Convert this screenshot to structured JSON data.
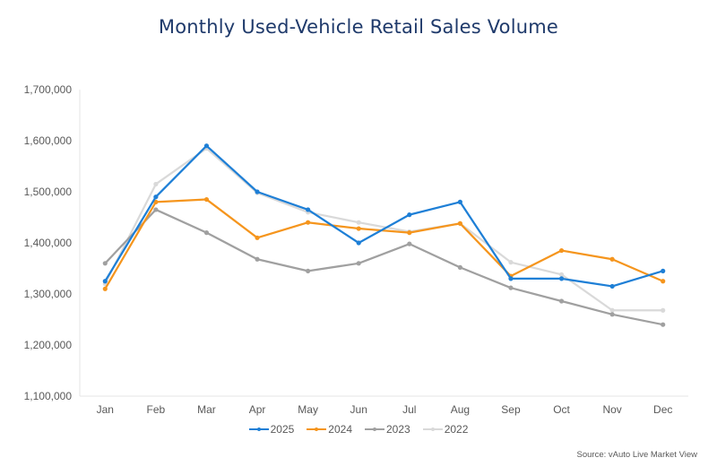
{
  "chart_data": {
    "type": "line",
    "title": "Monthly Used-Vehicle Retail Sales Volume",
    "xlabel": "",
    "ylabel": "",
    "categories": [
      "Jan",
      "Feb",
      "Mar",
      "Apr",
      "May",
      "Jun",
      "Jul",
      "Aug",
      "Sep",
      "Oct",
      "Nov",
      "Dec"
    ],
    "ylim": [
      1100000,
      1700000
    ],
    "yticks": [
      1100000,
      1200000,
      1300000,
      1400000,
      1500000,
      1600000,
      1700000
    ],
    "ytick_labels": [
      "1,100,000",
      "1,200,000",
      "1,300,000",
      "1,400,000",
      "1,500,000",
      "1,600,000",
      "1,700,000"
    ],
    "grid": false,
    "legend_position": "bottom",
    "series": [
      {
        "name": "2025",
        "color": "#1e7fd6",
        "values": [
          1325000,
          1490000,
          1590000,
          1500000,
          1465000,
          1400000,
          1455000,
          1480000,
          1330000,
          1330000,
          1315000,
          1345000
        ]
      },
      {
        "name": "2024",
        "color": "#f5951d",
        "values": [
          1310000,
          1480000,
          1485000,
          1410000,
          1440000,
          1428000,
          1420000,
          1438000,
          1335000,
          1385000,
          1368000,
          1325000
        ]
      },
      {
        "name": "2023",
        "color": "#a0a0a0",
        "values": [
          1360000,
          1465000,
          1420000,
          1368000,
          1345000,
          1360000,
          1398000,
          1352000,
          1312000,
          1286000,
          1260000,
          1240000
        ]
      },
      {
        "name": "2022",
        "color": "#d9d9d9",
        "values": [
          1320000,
          1515000,
          1585000,
          1498000,
          1460000,
          1440000,
          1422000,
          1438000,
          1362000,
          1338000,
          1268000,
          1268000
        ]
      }
    ],
    "source": "Source: vAuto Live Market View"
  }
}
